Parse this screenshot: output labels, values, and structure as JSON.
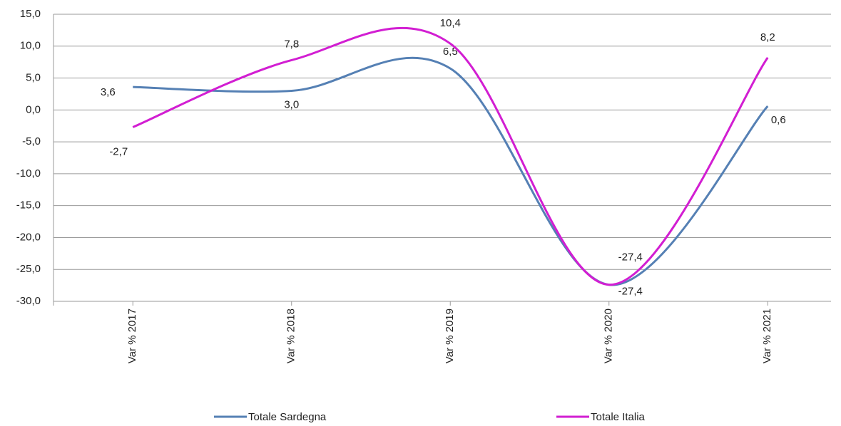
{
  "chart_data": {
    "type": "line",
    "categories": [
      "Var % 2017",
      "Var % 2018",
      "Var % 2019",
      "Var % 2020",
      "Var % 2021"
    ],
    "series": [
      {
        "name": "Totale Sardegna",
        "color": "#5580b4",
        "values": [
          3.6,
          3.0,
          6.5,
          -27.4,
          0.6
        ],
        "value_labels": [
          "3,6",
          "3,0",
          "6,5",
          "-27,4",
          "0,6"
        ]
      },
      {
        "name": "Totale Italia",
        "color": "#d21ed2",
        "values": [
          -2.7,
          7.8,
          10.4,
          -27.4,
          8.2
        ],
        "value_labels": [
          "-2,7",
          "7,8",
          "10,4",
          "-27,4",
          "8,2"
        ]
      }
    ],
    "ylim": [
      -30,
      15
    ],
    "yticks": [
      {
        "value": -30,
        "label": "-30,0"
      },
      {
        "value": -25,
        "label": "-25,0"
      },
      {
        "value": -20,
        "label": "-20,0"
      },
      {
        "value": -15,
        "label": "-15,0"
      },
      {
        "value": -10,
        "label": "-10,0"
      },
      {
        "value": -5,
        "label": "-5,0"
      },
      {
        "value": 0,
        "label": "0,0"
      },
      {
        "value": 5,
        "label": "5,0"
      },
      {
        "value": 10,
        "label": "10,0"
      },
      {
        "value": 15,
        "label": "15,0"
      }
    ],
    "grid": true,
    "smooth": true,
    "legend": "bottom"
  }
}
